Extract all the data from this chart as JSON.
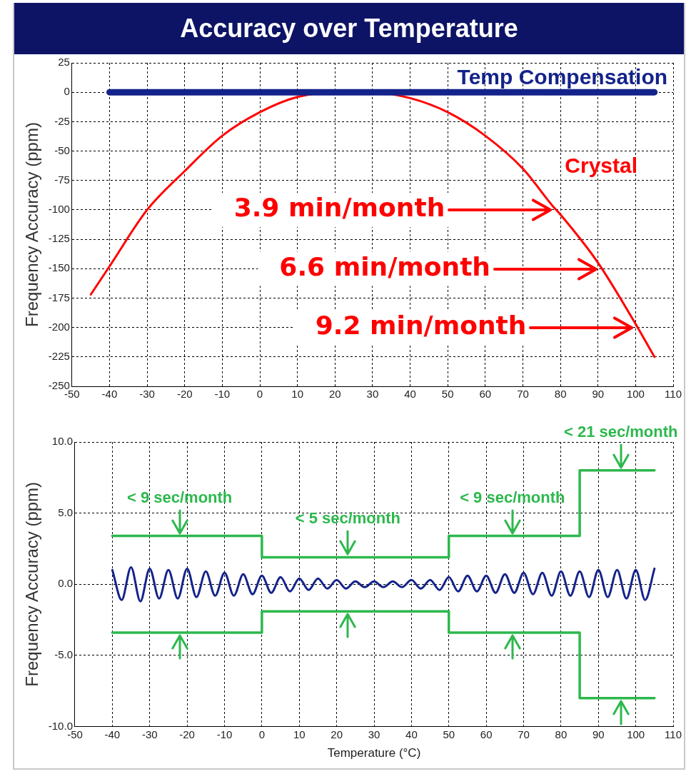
{
  "chart_data": [
    {
      "type": "line",
      "title": "Accuracy over Temperature",
      "ylabel": "Frequency Accuracy (ppm)",
      "marker": "none",
      "grid": true,
      "legend": false,
      "xlim": [
        -50,
        110
      ],
      "xticks": [
        -50,
        -40,
        -30,
        -20,
        -10,
        0,
        10,
        20,
        30,
        40,
        50,
        60,
        70,
        80,
        90,
        100,
        110
      ],
      "ylim": [
        -250,
        25
      ],
      "yticks": [
        25,
        0,
        -25,
        -50,
        -75,
        -100,
        -125,
        -150,
        -175,
        -200,
        -225,
        -250
      ],
      "series": [
        {
          "name": "Temp Compensation",
          "color": "#14238a",
          "x": [
            -40,
            -20,
            0,
            20,
            40,
            60,
            80,
            105
          ],
          "values": [
            0,
            0,
            0,
            0,
            0,
            0,
            0,
            0
          ]
        },
        {
          "name": "Crystal",
          "color": "#ff0000",
          "x": [
            -45,
            -40,
            -30,
            -20,
            -10,
            0,
            10,
            20,
            25,
            30,
            40,
            50,
            60,
            70,
            78,
            80,
            90,
            100,
            105
          ],
          "values": [
            -172,
            -148,
            -100,
            -67,
            -37,
            -17,
            -4,
            0,
            0,
            0,
            -5,
            -17,
            -37,
            -65,
            -97,
            -104,
            -145,
            -197,
            -225
          ]
        }
      ],
      "annotations": [
        "3.9 min/month",
        "6.6 min/month",
        "9.2 min/month"
      ]
    },
    {
      "type": "line",
      "xlabel": "Temperature (°C)",
      "ylabel": "Frequency Accuracy (ppm)",
      "marker": "none",
      "grid": true,
      "legend": false,
      "xlim": [
        -50,
        110
      ],
      "xticks": [
        -50,
        -40,
        -30,
        -20,
        -10,
        0,
        10,
        20,
        30,
        40,
        50,
        60,
        70,
        80,
        90,
        100,
        110
      ],
      "ylim": [
        -10,
        10
      ],
      "yticks": [
        {
          "value": 10,
          "label": "10.0"
        },
        {
          "value": 5,
          "label": "5.0"
        },
        {
          "value": 0,
          "label": "0.0"
        },
        {
          "value": -5,
          "label": "-5.0"
        },
        {
          "value": -10,
          "label": "-10.0"
        }
      ],
      "series": [
        {
          "color": "#14238a",
          "x": [
            -40,
            -37.5,
            -35,
            -32.5,
            -30,
            -27.5,
            -25,
            -22.5,
            -20,
            -17.5,
            -15,
            -12.5,
            -10,
            -7.5,
            -5,
            -2.5,
            0,
            2.5,
            5,
            7.5,
            10,
            12.5,
            15,
            17.5,
            20,
            22.5,
            25,
            27.5,
            30,
            32.5,
            35,
            37.5,
            40,
            42.5,
            45,
            47.5,
            50,
            52.5,
            55,
            57.5,
            60,
            62.5,
            65,
            67.5,
            70,
            72.5,
            75,
            77.5,
            80,
            82.5,
            85,
            87.5,
            90,
            92.5,
            95,
            97.5,
            100,
            102.5,
            105
          ],
          "values": [
            1.0,
            -1.1,
            1.2,
            -1.2,
            1.1,
            -1.0,
            1.0,
            -1.0,
            1.1,
            -0.9,
            0.9,
            -0.8,
            0.8,
            -0.8,
            0.7,
            -0.7,
            0.6,
            -0.6,
            0.5,
            -0.5,
            0.4,
            -0.4,
            0.4,
            -0.3,
            0.3,
            -0.3,
            0.2,
            -0.2,
            0.2,
            -0.2,
            0.2,
            -0.2,
            0.3,
            -0.3,
            0.3,
            -0.4,
            0.5,
            -0.5,
            0.6,
            -0.5,
            0.6,
            -0.6,
            0.7,
            -0.6,
            0.8,
            -0.7,
            0.8,
            -0.8,
            0.9,
            -0.8,
            0.9,
            -0.9,
            1.0,
            -0.9,
            1.0,
            -1.0,
            1.0,
            -1.1,
            1.1
          ]
        },
        {
          "type": "step",
          "color": "#2db84d",
          "x": [
            -40,
            0,
            50,
            85,
            105
          ],
          "values": [
            3.4,
            1.9,
            3.4,
            8,
            8
          ]
        },
        {
          "type": "step",
          "color": "#2db84d",
          "x": [
            -40,
            0,
            50,
            85,
            105
          ],
          "values": [
            -3.4,
            -1.9,
            -3.4,
            -8,
            -8
          ]
        }
      ],
      "annotations": [
        {
          "text": "< 9 sec/month",
          "x": -22,
          "y": 3.4
        },
        {
          "text": "< 5 sec/month",
          "x": 23,
          "y": 1.9
        },
        {
          "text": "< 9 sec/month",
          "x": 67,
          "y": 3.4
        },
        {
          "text": "< 21 sec/month",
          "x": 96,
          "y": 8
        }
      ]
    }
  ]
}
